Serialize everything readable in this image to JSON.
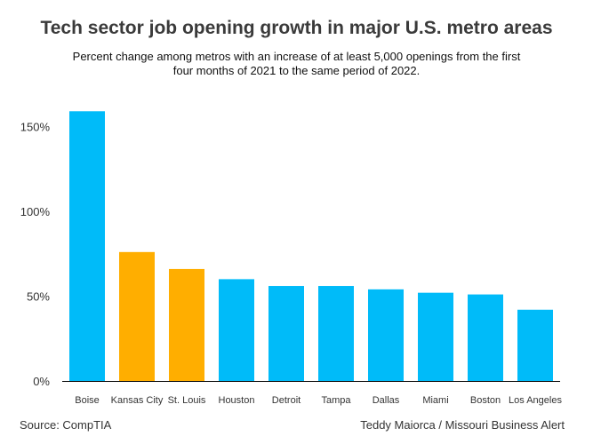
{
  "header": {
    "title": "Tech sector job opening growth in major U.S. metro areas",
    "subtitle": "Percent change among metros with an increase of at least 5,000 openings from the first four months of 2021 to the same period of 2022."
  },
  "footer": {
    "source": "Source: CompTIA",
    "credit": "Teddy Maiorca / Missouri Business Alert"
  },
  "colors": {
    "default": "#00bbf9",
    "highlight": "#ffae00",
    "axis": "#000000"
  },
  "chart_data": {
    "type": "bar",
    "title": "Tech sector job opening growth in major U.S. metro areas",
    "xlabel": "",
    "ylabel": "",
    "categories": [
      "Boise",
      "Kansas City",
      "St. Louis",
      "Houston",
      "Detroit",
      "Tampa",
      "Dallas",
      "Miami",
      "Boston",
      "Los Angeles"
    ],
    "values": [
      159,
      76,
      66,
      60,
      56,
      56,
      54,
      52,
      51,
      42
    ],
    "highlighted": [
      "Kansas City",
      "St. Louis"
    ],
    "ylim": [
      0,
      170
    ],
    "yticks": [
      0,
      50,
      100,
      150
    ],
    "ytick_labels": [
      "0%",
      "50%",
      "100%",
      "150%"
    ],
    "grid": false,
    "legend": "none"
  }
}
